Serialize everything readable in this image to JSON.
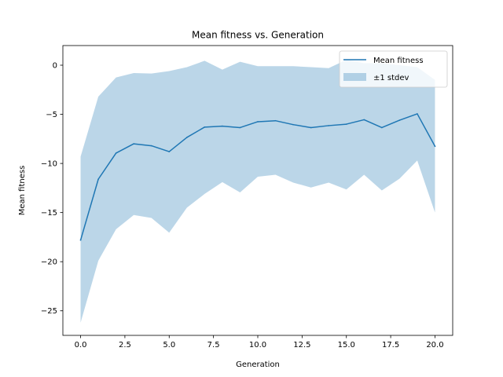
{
  "chart_data": {
    "type": "line",
    "title": "Mean fitness vs. Generation",
    "xlabel": "Generation",
    "ylabel": "Mean fitness",
    "xlim": [
      -1.0,
      21.0
    ],
    "ylim": [
      -27.5,
      2.0
    ],
    "xticks": [
      0.0,
      2.5,
      5.0,
      7.5,
      10.0,
      12.5,
      15.0,
      17.5,
      20.0
    ],
    "xtick_labels": [
      "0.0",
      "2.5",
      "5.0",
      "7.5",
      "10.0",
      "12.5",
      "15.0",
      "17.5",
      "20.0"
    ],
    "yticks": [
      0,
      -5,
      -10,
      -15,
      -20,
      -25
    ],
    "ytick_labels": [
      "0",
      "−5",
      "−10",
      "−15",
      "−20",
      "−25"
    ],
    "grid": false,
    "legend_position": "top-right",
    "x": [
      0,
      1,
      2,
      3,
      4,
      5,
      6,
      7,
      8,
      9,
      10,
      11,
      12,
      13,
      14,
      15,
      16,
      17,
      18,
      19,
      20
    ],
    "series": [
      {
        "name": "Mean fitness",
        "color": "#1f77b4",
        "values": [
          -17.8,
          -11.6,
          -8.95,
          -8.0,
          -8.2,
          -8.8,
          -7.35,
          -6.3,
          -6.2,
          -6.35,
          -5.75,
          -5.65,
          -6.05,
          -6.35,
          -6.15,
          -6.0,
          -5.55,
          -6.35,
          -5.6,
          -4.95,
          -8.25
        ]
      }
    ],
    "band": {
      "name": "±1 stdev",
      "color": "#1f77b4",
      "opacity": 0.3,
      "upper": [
        -9.3,
        -3.2,
        -1.25,
        -0.8,
        -0.85,
        -0.6,
        -0.2,
        0.45,
        -0.45,
        0.35,
        -0.1,
        -0.1,
        -0.1,
        -0.2,
        -0.3,
        0.55,
        0.2,
        0.2,
        0.0,
        -0.2,
        -1.5
      ],
      "lower": [
        -26.2,
        -19.9,
        -16.7,
        -15.25,
        -15.55,
        -17.05,
        -14.5,
        -13.1,
        -11.9,
        -12.95,
        -11.35,
        -11.15,
        -11.95,
        -12.45,
        -11.95,
        -12.65,
        -11.15,
        -12.75,
        -11.55,
        -9.7,
        -15.0
      ]
    }
  }
}
